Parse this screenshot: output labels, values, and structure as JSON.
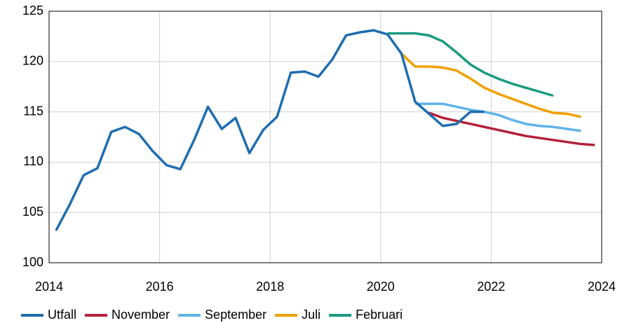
{
  "chart_data": {
    "type": "line",
    "xlim": [
      2014,
      2024
    ],
    "xticks": [
      2014,
      2016,
      2018,
      2020,
      2022,
      2024
    ],
    "ylim": [
      100,
      125
    ],
    "yticks": [
      100,
      105,
      110,
      115,
      120,
      125
    ],
    "grid": true,
    "legend": "bottom",
    "series": [
      {
        "name": "Utfall",
        "color": "#1f6db0",
        "x": [
          2014.125,
          2014.375,
          2014.625,
          2014.875,
          2015.125,
          2015.375,
          2015.625,
          2015.875,
          2016.125,
          2016.375,
          2016.625,
          2016.875,
          2017.125,
          2017.375,
          2017.625,
          2017.875,
          2018.125,
          2018.375,
          2018.625,
          2018.875,
          2019.125,
          2019.375,
          2019.625,
          2019.875,
          2020.125,
          2020.375,
          2020.625,
          2020.875,
          2021.125,
          2021.375,
          2021.625,
          2021.875
        ],
        "values": [
          103.2,
          105.8,
          108.7,
          109.4,
          113.0,
          113.5,
          112.8,
          111.1,
          109.7,
          109.3,
          112.2,
          115.5,
          113.3,
          114.4,
          110.9,
          113.2,
          114.5,
          118.9,
          119.0,
          118.5,
          120.2,
          122.6,
          122.9,
          123.1,
          122.7,
          120.8,
          116.0,
          114.8,
          113.6,
          113.8,
          115.0,
          115.0
        ]
      },
      {
        "name": "November",
        "color": "#b3203a",
        "x": [
          2020.875,
          2021.125,
          2021.375,
          2021.625,
          2021.875,
          2022.125,
          2022.375,
          2022.625,
          2022.875,
          2023.125,
          2023.375,
          2023.625,
          2023.875
        ],
        "values": [
          114.9,
          114.4,
          114.1,
          113.8,
          113.5,
          113.2,
          112.9,
          112.6,
          112.4,
          112.2,
          112.0,
          111.8,
          111.7
        ]
      },
      {
        "name": "September",
        "color": "#5fb3e8",
        "x": [
          2020.625,
          2020.875,
          2021.125,
          2021.375,
          2021.625,
          2021.875,
          2022.125,
          2022.375,
          2022.625,
          2022.875,
          2023.125,
          2023.375,
          2023.625
        ],
        "values": [
          115.8,
          115.8,
          115.8,
          115.5,
          115.2,
          115.0,
          114.7,
          114.2,
          113.8,
          113.6,
          113.5,
          113.3,
          113.1
        ]
      },
      {
        "name": "Juli",
        "color": "#f0a000",
        "x": [
          2020.375,
          2020.625,
          2020.875,
          2021.125,
          2021.375,
          2021.625,
          2021.875,
          2022.125,
          2022.375,
          2022.625,
          2022.875,
          2023.125,
          2023.375,
          2023.625
        ],
        "values": [
          120.8,
          119.5,
          119.5,
          119.4,
          119.1,
          118.3,
          117.4,
          116.8,
          116.3,
          115.8,
          115.3,
          114.9,
          114.8,
          114.5
        ]
      },
      {
        "name": "Februari",
        "color": "#1a9a80",
        "x": [
          2020.125,
          2020.375,
          2020.625,
          2020.875,
          2021.125,
          2021.375,
          2021.625,
          2021.875,
          2022.125,
          2022.375,
          2022.625,
          2022.875,
          2023.125
        ],
        "values": [
          122.8,
          122.8,
          122.8,
          122.6,
          122.0,
          120.9,
          119.7,
          118.9,
          118.3,
          117.8,
          117.4,
          117.0,
          116.6
        ]
      }
    ]
  }
}
